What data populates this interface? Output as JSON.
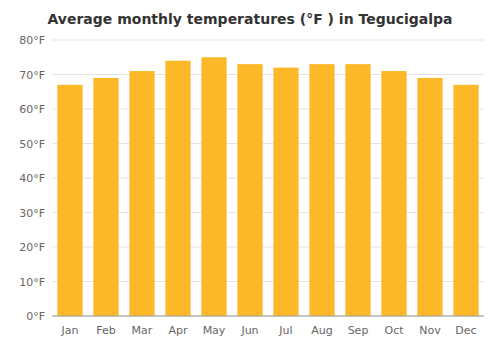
{
  "chart_data": {
    "type": "bar",
    "title": "Average monthly temperatures (°F ) in Tegucigalpa",
    "categories": [
      "Jan",
      "Feb",
      "Mar",
      "Apr",
      "May",
      "Jun",
      "Jul",
      "Aug",
      "Sep",
      "Oct",
      "Nov",
      "Dec"
    ],
    "values": [
      67,
      69,
      71,
      74,
      75,
      73,
      72,
      73,
      73,
      71,
      69,
      67
    ],
    "color": "#FDB827",
    "ylim": [
      0,
      80
    ],
    "yticks": [
      {
        "value": 0,
        "label": "0°F"
      },
      {
        "value": 10,
        "label": "10°F"
      },
      {
        "value": 20,
        "label": "20°F"
      },
      {
        "value": 30,
        "label": "30°F"
      },
      {
        "value": 40,
        "label": "40°F"
      },
      {
        "value": 50,
        "label": "50°F"
      },
      {
        "value": 60,
        "label": "60°F"
      },
      {
        "value": 70,
        "label": "70°F"
      },
      {
        "value": 80,
        "label": "80°F"
      }
    ],
    "grid": true
  }
}
